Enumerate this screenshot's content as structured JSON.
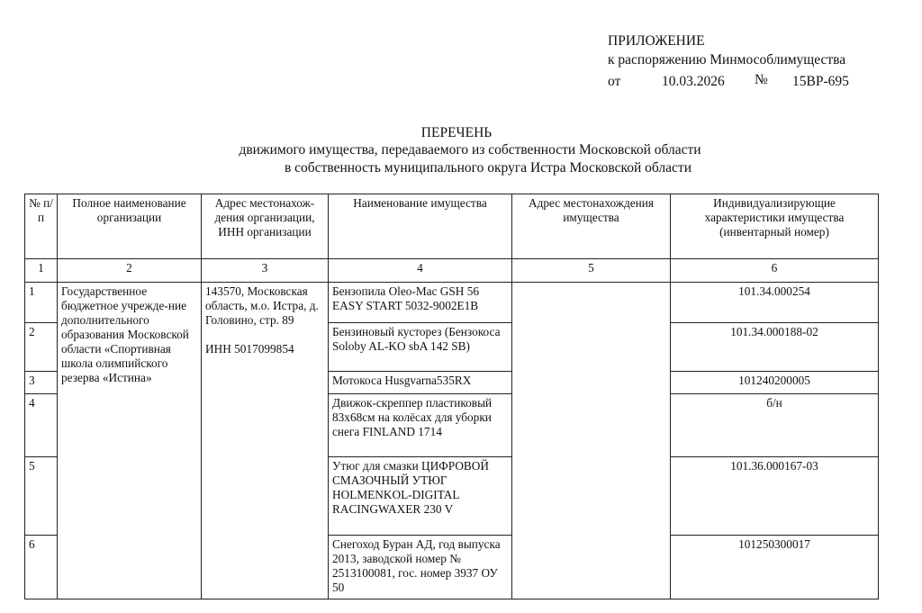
{
  "appendix": {
    "title": "ПРИЛОЖЕНИЕ",
    "line2": "к распоряжению Минмособлимущества",
    "from_label": "от",
    "date": "10.03.2026",
    "number_sign": "№",
    "number": "15ВР-695"
  },
  "document_title": {
    "line1": "ПЕРЕЧЕНЬ",
    "line2": "движимого имущества, передаваемого из собственности Московской области",
    "line3": "в собственность муниципального округа Истра Московской области"
  },
  "table": {
    "headers": [
      "№ п/п",
      "Полное наименование организации",
      "Адрес местонахож-дения организации, ИНН организации",
      "Наименование имущества",
      "Адрес местонахождения имущества",
      "Индивидуализирующие характеристики имущества (инвентарный номер)"
    ],
    "column_numbers": [
      "1",
      "2",
      "3",
      "4",
      "5",
      "6"
    ],
    "organization": "Государственное бюджетное учрежде-ние дополнительного образования  Московской области «Спортивная школа олимпийского резерва «Истина»",
    "org_address": "143570, Московская область, м.о. Истра, д. Головино,  стр. 89",
    "org_inn": "ИНН 5017099854",
    "property_address": "",
    "rows": [
      {
        "num": "1",
        "name": "Бензопила Oleo-Mac GSH 56 EASY START 5032-9002E1B",
        "inventory": "101.34.000254"
      },
      {
        "num": "2",
        "name": "Бензиновый кусторез (Бензокоса Soloby AL-KO sbA 142 SB)",
        "inventory": "101.34.000188-02"
      },
      {
        "num": "3",
        "name": "Мотокоса Husgvarna535RX",
        "inventory": "101240200005"
      },
      {
        "num": "4",
        "name": "Движок-скреппер пластиковый 83х68см на колёсах для уборки снега FINLAND 1714",
        "inventory": "б/н"
      },
      {
        "num": "5",
        "name": "Утюг для смазки ЦИФРОВОЙ СМАЗОЧНЫЙ УТЮГ HOLMENKOL-DIGITAL RACINGWAXER 230 V",
        "inventory": "101.36.000167-03"
      },
      {
        "num": "6",
        "name": "Снегоход Буран АД, год выпуска 2013, заводской номер № 2513100081, гос. номер 3937 ОУ 50",
        "inventory": "101250300017"
      }
    ]
  }
}
